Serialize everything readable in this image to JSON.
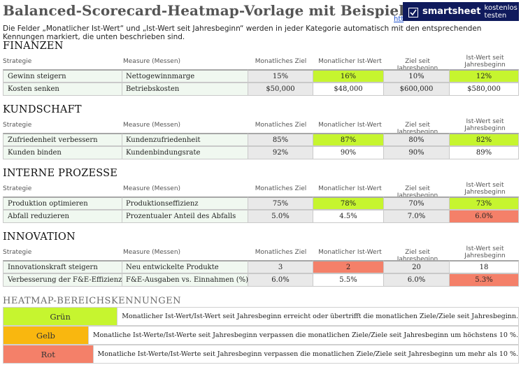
{
  "header": {
    "title": "Balanced-Scorecard-Heatmap-Vorlage mit Beispiel",
    "link_stub": "htt",
    "banner_brand": "smartsheet",
    "banner_cta": "kostenlos testen",
    "description": "Die Felder „Monatlicher Ist-Wert“ und „Ist-Wert seit Jahresbeginn“ werden in jeder Kategorie automatisch mit den entsprechenden Kennungen markiert, die unten beschrieben sind."
  },
  "columns": {
    "strategy": "Strategie",
    "measure": "Measure (Messen)",
    "monthly_target": "Monatliches Ziel",
    "monthly_actual": "Monatlicher Ist-Wert",
    "ytd_target": "Ziel seit Jahresbeginn",
    "ytd_actual": "Ist-Wert seit Jahresbeginn"
  },
  "sections": [
    {
      "title": "FINANZEN",
      "rows": [
        {
          "strategy": "Gewinn steigern",
          "measure": "Nettogewinnmarge",
          "monthly_target": "15%",
          "monthly_actual": "16%",
          "ytd_target": "10%",
          "ytd_actual": "12%",
          "monthly_status": "green",
          "ytd_status": "green"
        },
        {
          "strategy": "Kosten senken",
          "measure": "Betriebskosten",
          "monthly_target": "$50,000",
          "monthly_actual": "$48,000",
          "ytd_target": "$600,000",
          "ytd_actual": "$580,000",
          "monthly_status": "white",
          "ytd_status": "white"
        }
      ]
    },
    {
      "title": "KUNDSCHAFT",
      "rows": [
        {
          "strategy": "Zufriedenheit verbessern",
          "measure": "Kundenzufriedenheit",
          "monthly_target": "85%",
          "monthly_actual": "87%",
          "ytd_target": "80%",
          "ytd_actual": "82%",
          "monthly_status": "green",
          "ytd_status": "green"
        },
        {
          "strategy": "Kunden binden",
          "measure": "Kundenbindungsrate",
          "monthly_target": "92%",
          "monthly_actual": "90%",
          "ytd_target": "90%",
          "ytd_actual": "89%",
          "monthly_status": "white",
          "ytd_status": "white"
        }
      ]
    },
    {
      "title": "INTERNE PROZESSE",
      "rows": [
        {
          "strategy": "Produktion optimieren",
          "measure": "Produktionseffizienz",
          "monthly_target": "75%",
          "monthly_actual": "78%",
          "ytd_target": "70%",
          "ytd_actual": "73%",
          "monthly_status": "green",
          "ytd_status": "green"
        },
        {
          "strategy": "Abfall reduzieren",
          "measure": "Prozentualer Anteil des Abfalls",
          "monthly_target": "5.0%",
          "monthly_actual": "4.5%",
          "ytd_target": "7.0%",
          "ytd_actual": "6.0%",
          "monthly_status": "white",
          "ytd_status": "red"
        }
      ]
    },
    {
      "title": "INNOVATION",
      "rows": [
        {
          "strategy": "Innovationskraft steigern",
          "measure": "Neu entwickelte Produkte",
          "monthly_target": "3",
          "monthly_actual": "2",
          "ytd_target": "20",
          "ytd_actual": "18",
          "monthly_status": "red",
          "ytd_status": "white"
        },
        {
          "strategy": "Verbesserung der F&E-Effizienz",
          "measure": "F&E-Ausgaben vs. Einnahmen (%)",
          "monthly_target": "6.0%",
          "monthly_actual": "5.5%",
          "ytd_target": "6.0%",
          "ytd_actual": "5.3%",
          "monthly_status": "white",
          "ytd_status": "red"
        }
      ]
    }
  ],
  "legend": {
    "title": "HEATMAP-BEREICHSKENNUNGEN",
    "items": [
      {
        "label": "Grün",
        "color": "#c6f52f",
        "text": "Monatlicher Ist-Wert/Ist-Wert seit Jahresbeginn erreicht oder übertrifft die monatlichen Ziele/Ziele seit Jahresbeginn."
      },
      {
        "label": "Gelb",
        "color": "#f9b70f",
        "text": "Monatliche Ist-Werte/Ist-Werte seit Jahresbeginn verpassen die monatlichen Ziele/Ziele seit Jahresbeginn um höchstens 10 %."
      },
      {
        "label": "Rot",
        "color": "#f48069",
        "text": "Monatliche Ist-Werte/Ist-Werte seit Jahresbeginn verpassen die monatlichen Ziele/Ziele seit Jahresbeginn um mehr als 10 %."
      }
    ]
  }
}
